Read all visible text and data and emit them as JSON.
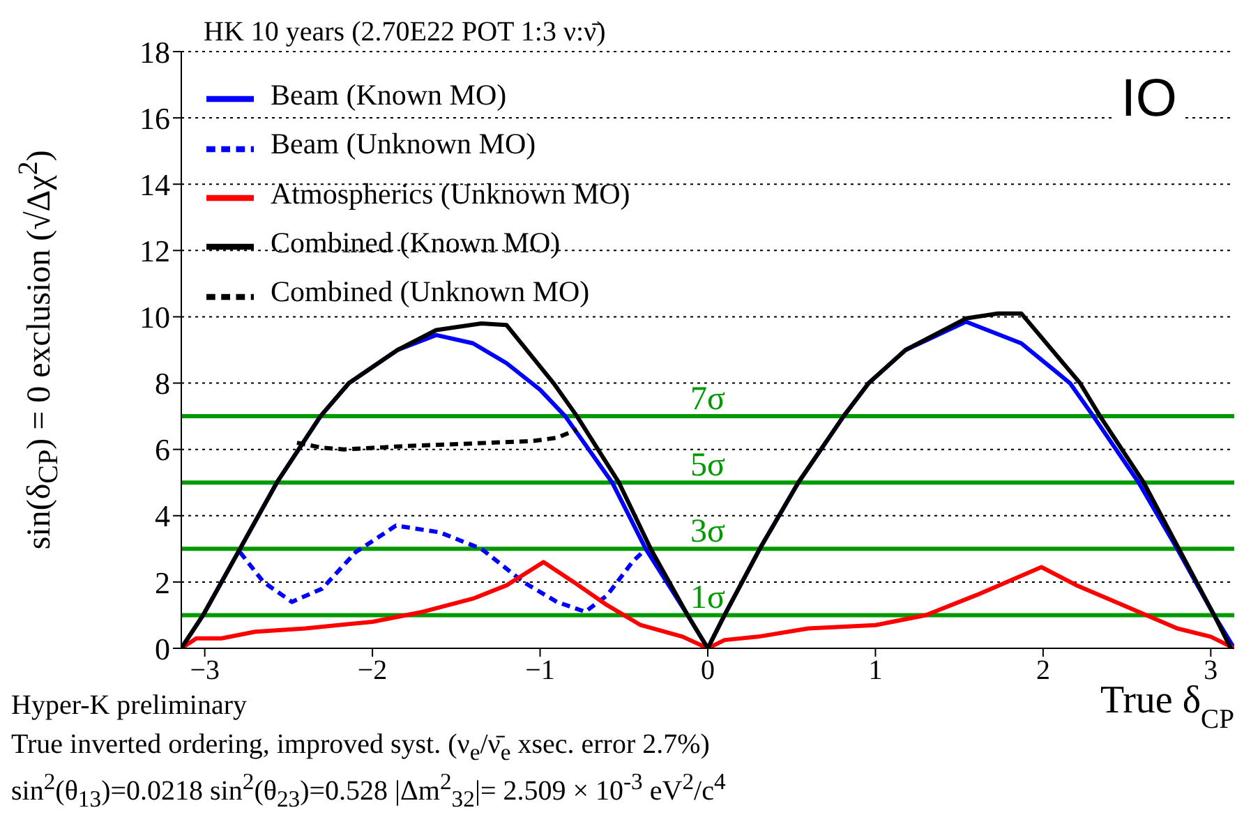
{
  "chart_data": {
    "type": "line",
    "title": "HK 10 years (2.70E22 POT 1:3 ν:ν̄)",
    "xlabel": "True δ$_{CP}$",
    "ylabel": "sin(δ$_{CP}$) = 0 exclusion (√Δχ$^{2}$)",
    "annotations": [
      "IO",
      "Hyper-K preliminary",
      "True inverted ordering, improved syst. (ν$_{e}$/ν̄$_{e}$ xsec. error 2.7%)",
      "sin$^{2}$(θ$_{13}$)=0.0218 sin$^{2}$(θ$_{23}$)=0.528 |Δm$^{2}$$_{32}$|= 2.509 × 10$^{-3}$ eV$^{2}$/c$^{4}$"
    ],
    "xlim": [
      -3.14,
      3.14
    ],
    "xticks": [
      -3,
      -2,
      -1,
      0,
      1,
      2,
      3
    ],
    "ylim": [
      0,
      18
    ],
    "yticks": [
      0,
      2,
      4,
      6,
      8,
      10,
      12,
      14,
      16,
      18
    ],
    "grid": "y",
    "legend": "top left",
    "marker": "none",
    "series": [
      {
        "name": "Beam (Known MO)",
        "color": "#0000ff",
        "line_style": "solid",
        "x": [
          -3.14,
          -3.01,
          -2.79,
          -2.57,
          -2.31,
          -2.14,
          -1.85,
          -1.62,
          -1.4,
          -1.2,
          -1.0,
          -0.85,
          -0.57,
          -0.37,
          -0.12,
          0,
          0.1,
          0.31,
          0.54,
          0.81,
          0.96,
          1.18,
          1.54,
          1.87,
          2.16,
          2.3,
          2.57,
          2.8,
          3.02,
          3.14
        ],
        "values": [
          0,
          1,
          3,
          5,
          7,
          8,
          9,
          9.45,
          9.2,
          8.6,
          7.8,
          7,
          5,
          3,
          1,
          0,
          1,
          3,
          5,
          7,
          8,
          9,
          9.85,
          9.2,
          8,
          7,
          5,
          3,
          1,
          0
        ]
      },
      {
        "name": "Beam (Unknown MO)",
        "color": "#0000ff",
        "line_style": "dashed",
        "x": [
          -2.79,
          -2.65,
          -2.48,
          -2.3,
          -2.1,
          -1.86,
          -1.6,
          -1.35,
          -1.1,
          -0.9,
          -0.73,
          -0.6,
          -0.45,
          -0.37
        ],
        "values": [
          2.9,
          2.0,
          1.4,
          1.8,
          2.9,
          3.7,
          3.5,
          3.0,
          2.0,
          1.4,
          1.1,
          1.6,
          2.6,
          3.0
        ]
      },
      {
        "name": "Atmospherics (Unknown MO)",
        "color": "#ff0000",
        "line_style": "solid",
        "x": [
          -3.14,
          -3.05,
          -2.9,
          -2.7,
          -2.4,
          -2.0,
          -1.7,
          -1.4,
          -1.2,
          -0.98,
          -0.8,
          -0.6,
          -0.4,
          -0.15,
          0,
          0.1,
          0.3,
          0.6,
          1.0,
          1.3,
          1.6,
          1.99,
          2.2,
          2.5,
          2.8,
          3.0,
          3.14
        ],
        "values": [
          0,
          0.3,
          0.3,
          0.5,
          0.6,
          0.8,
          1.1,
          1.5,
          1.9,
          2.6,
          2.0,
          1.3,
          0.7,
          0.35,
          0,
          0.25,
          0.35,
          0.6,
          0.7,
          1.0,
          1.6,
          2.45,
          1.9,
          1.25,
          0.6,
          0.35,
          0
        ]
      },
      {
        "name": "Combined (Known MO)",
        "color": "#000000",
        "line_style": "solid",
        "x": [
          -3.14,
          -3.01,
          -2.79,
          -2.57,
          -2.31,
          -2.14,
          -1.85,
          -1.62,
          -1.35,
          -1.2,
          -0.92,
          -0.78,
          -0.53,
          -0.34,
          -0.12,
          0,
          0.1,
          0.31,
          0.54,
          0.81,
          0.96,
          1.18,
          1.54,
          1.73,
          1.87,
          2.22,
          2.34,
          2.6,
          2.81,
          3.02,
          3.12
        ],
        "values": [
          0,
          1,
          3,
          5,
          7,
          8,
          9,
          9.6,
          9.8,
          9.75,
          8,
          7,
          5,
          3,
          1,
          0,
          1,
          3,
          5,
          7,
          8,
          9,
          9.95,
          10.1,
          10.1,
          8,
          7,
          5,
          3,
          1,
          0
        ]
      },
      {
        "name": "Combined (Unknown MO)",
        "color": "#000000",
        "line_style": "dashed",
        "x": [
          -2.45,
          -2.3,
          -2.17,
          -1.8,
          -1.3,
          -1.05,
          -0.9,
          -0.78
        ],
        "values": [
          6.2,
          6.05,
          6.0,
          6.1,
          6.2,
          6.25,
          6.35,
          6.6
        ]
      }
    ],
    "ref_lines": [
      {
        "axis": "y",
        "value": 1,
        "label": "1σ",
        "color": "#009900"
      },
      {
        "axis": "y",
        "value": 3,
        "label": "3σ",
        "color": "#009900"
      },
      {
        "axis": "y",
        "value": 5,
        "label": "5σ",
        "color": "#009900"
      },
      {
        "axis": "y",
        "value": 7,
        "label": "7σ",
        "color": "#009900"
      }
    ]
  }
}
